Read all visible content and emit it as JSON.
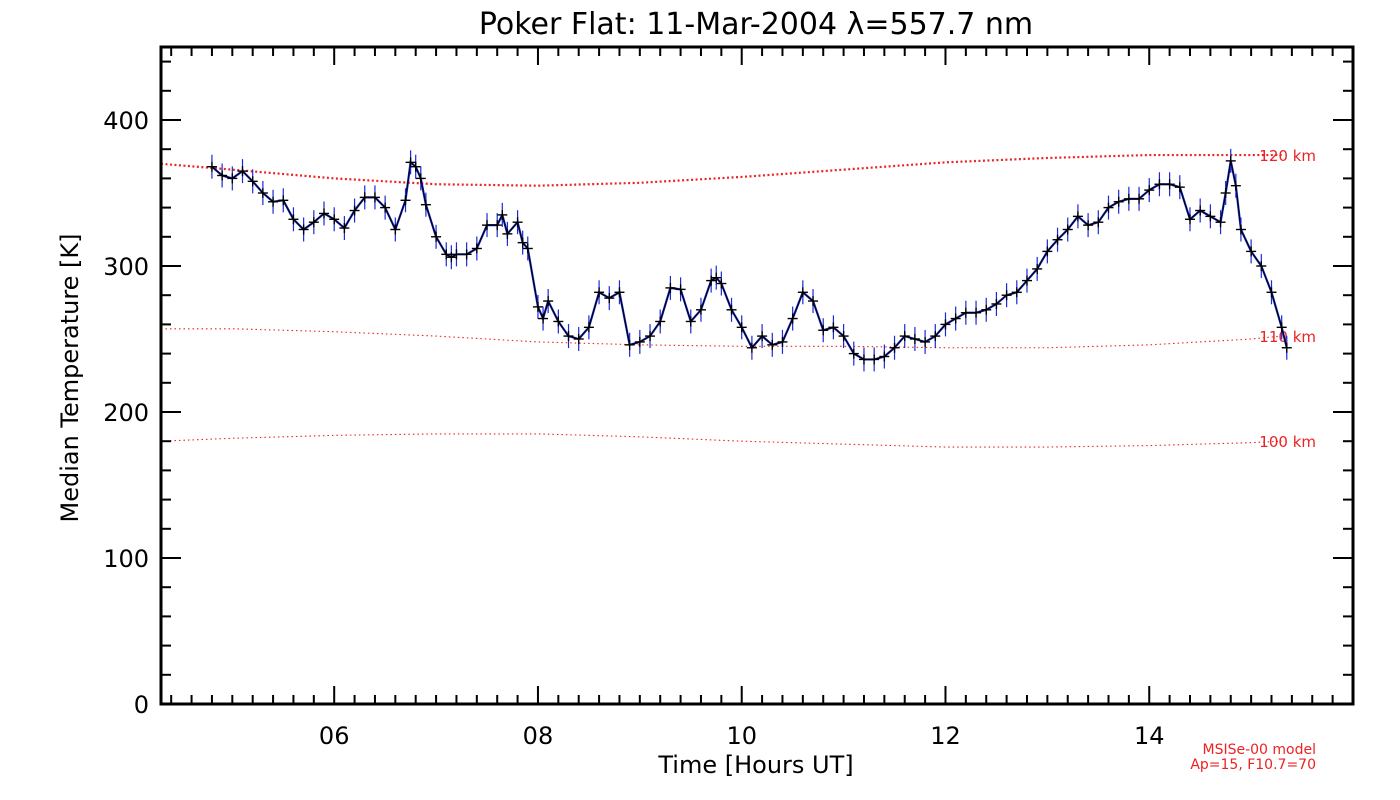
{
  "chart_data": {
    "type": "line",
    "title": "Poker Flat: 11-Mar-2004 λ=557.7 nm",
    "xlabel": "Time [Hours UT]",
    "ylabel": "Median Temperature [K]",
    "xlim": [
      4.3,
      16.0
    ],
    "ylim": [
      0,
      450
    ],
    "xticks": [
      6,
      8,
      10,
      12,
      14
    ],
    "xtick_labels": [
      "06",
      "08",
      "10",
      "12",
      "14"
    ],
    "yticks": [
      0,
      100,
      200,
      300,
      400
    ],
    "ytick_labels": [
      "0",
      "100",
      "200",
      "300",
      "400"
    ],
    "series": [
      {
        "name": "Median temperature",
        "color": "#000000",
        "error_color": "#1a2ad8",
        "x": [
          4.8,
          4.9,
          5.0,
          5.1,
          5.2,
          5.3,
          5.4,
          5.5,
          5.6,
          5.7,
          5.8,
          5.9,
          6.0,
          6.1,
          6.2,
          6.3,
          6.4,
          6.5,
          6.6,
          6.7,
          6.75,
          6.8,
          6.85,
          6.9,
          7.0,
          7.1,
          7.15,
          7.2,
          7.3,
          7.4,
          7.5,
          7.6,
          7.65,
          7.7,
          7.8,
          7.85,
          7.9,
          8.0,
          8.05,
          8.1,
          8.2,
          8.3,
          8.4,
          8.5,
          8.6,
          8.7,
          8.8,
          8.9,
          9.0,
          9.1,
          9.2,
          9.3,
          9.4,
          9.5,
          9.6,
          9.7,
          9.75,
          9.8,
          9.9,
          10.0,
          10.1,
          10.2,
          10.3,
          10.4,
          10.5,
          10.6,
          10.7,
          10.8,
          10.9,
          11.0,
          11.1,
          11.2,
          11.3,
          11.4,
          11.5,
          11.6,
          11.7,
          11.8,
          11.9,
          12.0,
          12.1,
          12.2,
          12.3,
          12.4,
          12.5,
          12.6,
          12.7,
          12.8,
          12.9,
          13.0,
          13.1,
          13.2,
          13.3,
          13.4,
          13.5,
          13.6,
          13.7,
          13.8,
          13.9,
          14.0,
          14.1,
          14.2,
          14.3,
          14.4,
          14.5,
          14.6,
          14.7,
          14.75,
          14.8,
          14.85,
          14.9,
          15.0,
          15.1,
          15.2,
          15.3,
          15.35
        ],
        "y": [
          368,
          362,
          360,
          365,
          358,
          350,
          344,
          345,
          332,
          325,
          330,
          336,
          332,
          326,
          338,
          347,
          347,
          340,
          325,
          345,
          371,
          368,
          360,
          342,
          320,
          308,
          306,
          308,
          308,
          312,
          328,
          328,
          335,
          322,
          330,
          316,
          312,
          272,
          264,
          276,
          262,
          252,
          250,
          258,
          282,
          278,
          282,
          246,
          248,
          252,
          262,
          285,
          284,
          262,
          270,
          290,
          292,
          288,
          270,
          258,
          244,
          252,
          246,
          248,
          264,
          282,
          276,
          256,
          258,
          252,
          240,
          236,
          236,
          238,
          244,
          252,
          250,
          248,
          252,
          260,
          264,
          268,
          268,
          270,
          274,
          280,
          282,
          290,
          298,
          310,
          318,
          325,
          334,
          328,
          330,
          340,
          344,
          346,
          346,
          352,
          356,
          356,
          354,
          332,
          338,
          334,
          330,
          350,
          372,
          355,
          325,
          310,
          300,
          282,
          258,
          244
        ]
      }
    ],
    "model_curves": [
      {
        "label": "120 km",
        "color": "#e22",
        "x": [
          4.3,
          5.0,
          6.0,
          7.0,
          8.0,
          9.0,
          10.0,
          11.0,
          12.0,
          13.0,
          14.0,
          15.0,
          15.3
        ],
        "y": [
          370,
          366,
          360,
          356,
          355,
          357,
          361,
          366,
          371,
          374,
          376,
          376,
          376
        ]
      },
      {
        "label": "110 km",
        "color": "#e22",
        "x": [
          4.3,
          5.0,
          6.0,
          7.0,
          8.0,
          9.0,
          10.0,
          11.0,
          12.0,
          13.0,
          14.0,
          15.0,
          15.3
        ],
        "y": [
          257,
          257,
          255,
          252,
          248,
          246,
          245,
          245,
          244,
          244,
          246,
          250,
          252
        ]
      },
      {
        "label": "100 km",
        "color": "#e22",
        "x": [
          4.3,
          5.0,
          6.0,
          7.0,
          8.0,
          9.0,
          10.0,
          11.0,
          12.0,
          13.0,
          14.0,
          15.0,
          15.3
        ],
        "y": [
          180,
          182,
          184,
          185,
          185,
          183,
          180,
          178,
          176,
          176,
          177,
          179,
          180
        ]
      }
    ],
    "annotation": [
      "MSISe-00 model",
      "Ap=15, F10.7=70"
    ]
  }
}
